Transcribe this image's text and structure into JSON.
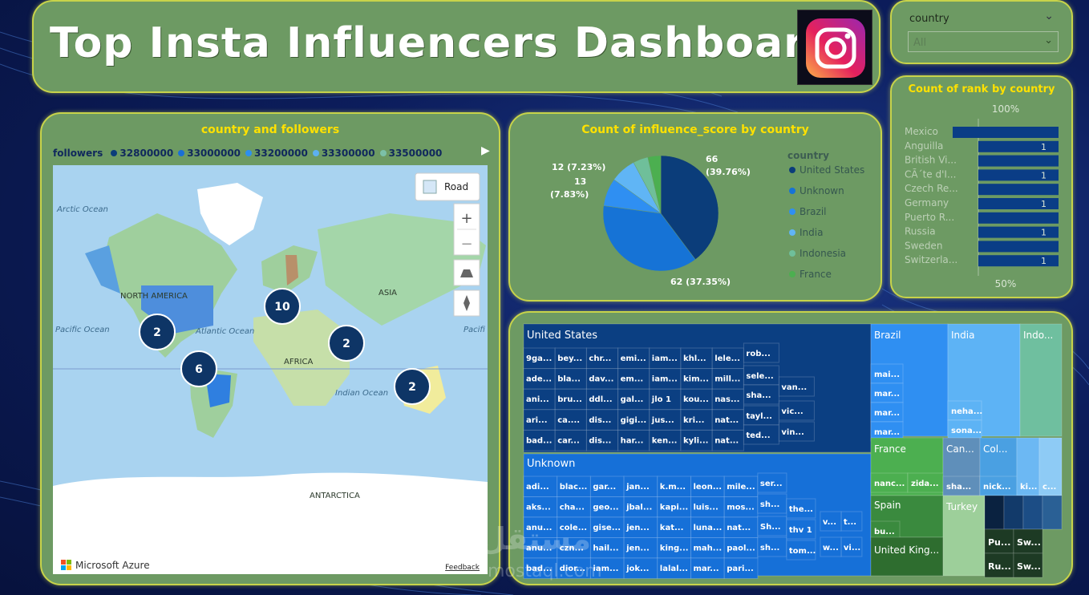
{
  "title": "Top Insta Influencers Dashboard",
  "slicer": {
    "label": "country",
    "value": "All"
  },
  "map": {
    "title": "country and followers",
    "legend_label": "followers",
    "legend": [
      {
        "label": "32800000",
        "color": "#0b3d7a"
      },
      {
        "label": "33000000",
        "color": "#1a6fd6"
      },
      {
        "label": "33200000",
        "color": "#2d8ff0"
      },
      {
        "label": "33300000",
        "color": "#5db0f0"
      },
      {
        "label": "33500000",
        "color": "#7cc0a8"
      }
    ],
    "road_label": "Road",
    "zoom_in": "+",
    "zoom_out": "−",
    "ocean_labels": [
      "Arctic Ocean",
      "Pacific Ocean",
      "Atlantic Ocean",
      "Indian Ocean",
      "Pacifi"
    ],
    "continent_labels": [
      "NORTH AMERICA",
      "ASIA",
      "AFRICA",
      "ANTARCTICA"
    ],
    "clusters": [
      "2",
      "10",
      "2",
      "6",
      "2"
    ],
    "brand": "Microsoft Azure",
    "feedback": "Feedback"
  },
  "pie": {
    "title": "Count of influence_score by country",
    "legend_title": "country",
    "labels": {
      "us": "66",
      "us_pct": "(39.76%)",
      "unknown": "62 (37.35%)",
      "brazil_a": "12 (7.23%)",
      "brazil_b": "13",
      "brazil_c": "(7.83%)"
    },
    "chart_data": {
      "type": "pie",
      "title": "Count of influence_score by country",
      "categories": [
        "United States",
        "Unknown",
        "Brazil",
        "India",
        "Indonesia",
        "France"
      ],
      "values": [
        66,
        62,
        13,
        12,
        7,
        6
      ],
      "colors": [
        "#0b3d7a",
        "#1673d6",
        "#2f8ff2",
        "#60b5f5",
        "#6fbf9a",
        "#4caf50"
      ]
    }
  },
  "rank": {
    "title": "Count of rank by country",
    "top_label": "100%",
    "bottom_label": "50%",
    "chart_data": {
      "type": "bar",
      "title": "Count of rank by country",
      "categories": [
        "Mexico",
        "Anguilla",
        "British Vi...",
        "CÃ´te d'I...",
        "Czech Re...",
        "Germany",
        "Puerto R...",
        "Russia",
        "Sweden",
        "Switzerla..."
      ],
      "values": [
        1,
        1,
        1,
        1,
        1,
        1,
        1,
        1,
        1,
        1
      ],
      "data_labels": [
        "",
        "1",
        "",
        "1",
        "",
        "1",
        "",
        "1",
        "",
        "1"
      ]
    }
  },
  "treemap": {
    "groups": {
      "us": "United States",
      "unknown": "Unknown",
      "brazil": "Brazil",
      "india": "India",
      "indo": "Indo...",
      "france": "France",
      "can": "Can...",
      "col": "Col...",
      "spain": "Spain",
      "turkey": "Turkey",
      "uk": "United King..."
    },
    "us_cells": [
      [
        "9ga...",
        "bey...",
        "chr...",
        "emi...",
        "iam...",
        "khl...",
        "lele..."
      ],
      [
        "ade...",
        "bla...",
        "dav...",
        "em...",
        "iam...",
        "kim...",
        "mill..."
      ],
      [
        "ani...",
        "bru...",
        "ddl...",
        "gal...",
        "jlo 1",
        "kou...",
        "nas..."
      ],
      [
        "ari...",
        "ca....",
        "dis...",
        "gigi...",
        "jus...",
        "kri...",
        "nat..."
      ],
      [
        "bad...",
        "car...",
        "dis...",
        "har...",
        "ken...",
        "kyli...",
        "nat..."
      ]
    ],
    "us_extra": [
      "rob...",
      "sele...",
      "sha...",
      "tayl...",
      "ted...",
      "van...",
      "vic...",
      "vin..."
    ],
    "unknown_cells": [
      [
        "adi...",
        "blac...",
        "gar...",
        "jan...",
        "k.m...",
        "leon...",
        "mile..."
      ],
      [
        "aks...",
        "cha...",
        "geo...",
        "jbal...",
        "kapi...",
        "luis...",
        "mos..."
      ],
      [
        "anu...",
        "cole...",
        "gise...",
        "jen...",
        "kat...",
        "luna...",
        "nat..."
      ],
      [
        "anu...",
        "czn...",
        "hail...",
        "jen...",
        "king...",
        "mah...",
        "paol..."
      ],
      [
        "bad...",
        "dior...",
        "iam...",
        "jok...",
        "lalal...",
        "mar...",
        "pari..."
      ]
    ],
    "unknown_extra": [
      "ser...",
      "sh...",
      "Sh...",
      "sh...",
      "the...",
      "thv 1",
      "tom...",
      "t...",
      "v...",
      "vi...",
      "w..."
    ],
    "brazil_cells": [
      "mai...",
      "mar...",
      "mar...",
      "mar..."
    ],
    "india_cells": [
      "neha...",
      "sona..."
    ],
    "france_cells": [
      "nanc...",
      "zida..."
    ],
    "can_cells": [
      "sha..."
    ],
    "col_cells": [
      "nick..."
    ],
    "misc_cells": [
      "ki...",
      "c..."
    ],
    "spain_cells": [
      "bu..."
    ],
    "sw_cells": [
      "Pu...",
      "Sw...",
      "Ru...",
      "Sw..."
    ]
  },
  "watermark": {
    "line1": "مستقل",
    "line2": "mostaql.com"
  }
}
